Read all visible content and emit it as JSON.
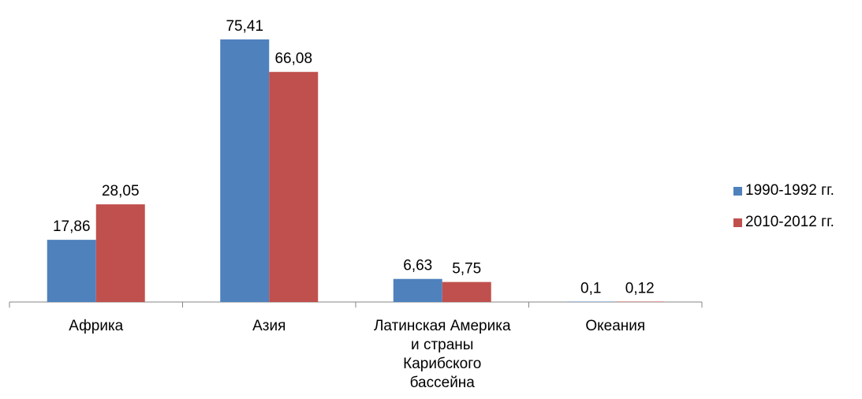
{
  "chart_data": {
    "type": "bar",
    "title": "",
    "xlabel": "",
    "ylabel": "",
    "ylim": [
      0,
      80
    ],
    "grid": false,
    "legend_position": "right",
    "categories": [
      [
        "Африка"
      ],
      [
        "Азия"
      ],
      [
        "Латинская Америка",
        "и страны",
        "Карибского",
        "бассейна"
      ],
      [
        "Океания"
      ]
    ],
    "data_labels": [
      [
        "17,86",
        "28,05"
      ],
      [
        "75,41",
        "66,08"
      ],
      [
        "6,63",
        "5,75"
      ],
      [
        "0,1",
        "0,12"
      ]
    ],
    "series": [
      {
        "name": "1990-1992 гг.",
        "color": "#4F81BD",
        "values": [
          17.86,
          75.41,
          6.63,
          0.1
        ]
      },
      {
        "name": "2010-2012 гг.",
        "color": "#C0504D",
        "values": [
          28.05,
          66.08,
          5.75,
          0.12
        ]
      }
    ]
  }
}
